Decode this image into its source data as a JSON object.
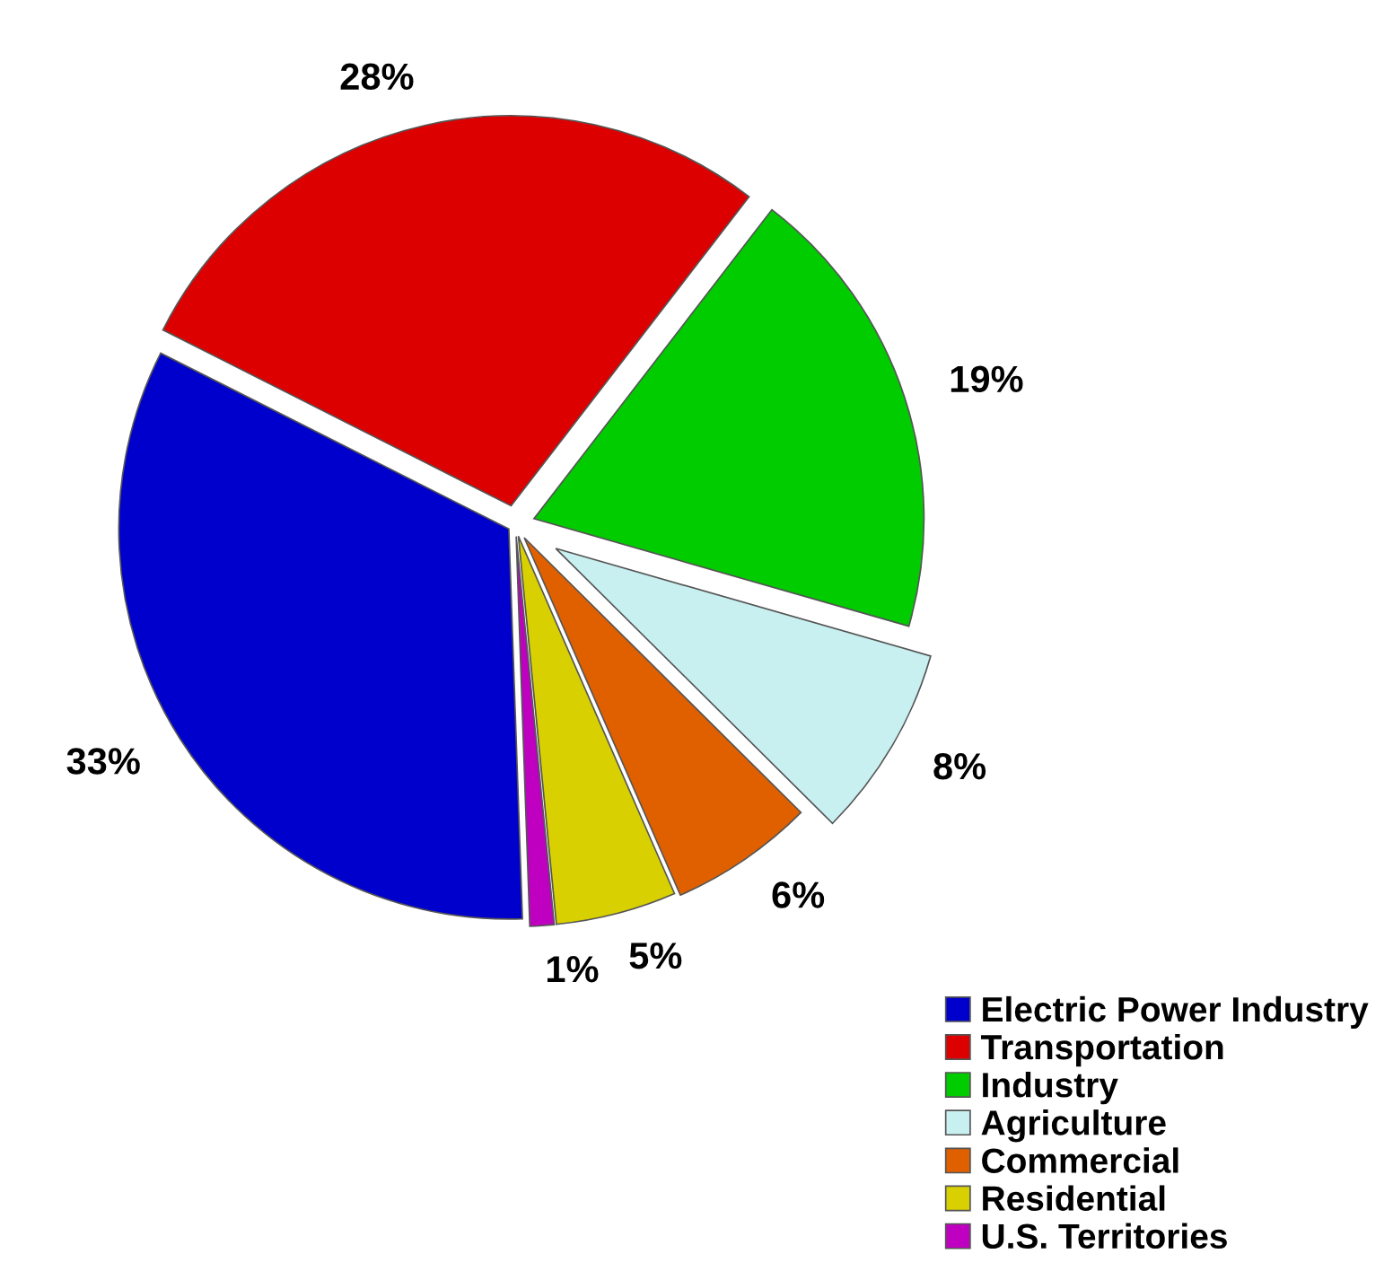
{
  "chart_data": {
    "type": "pie",
    "categories": [
      "Electric Power Industry",
      "Transportation",
      "Industry",
      "Agriculture",
      "Commercial",
      "Residential",
      "U.S. Territories"
    ],
    "values": [
      33,
      28,
      19,
      8,
      6,
      5,
      1
    ],
    "colors": [
      "#0000cc",
      "#dd0000",
      "#00cc00",
      "#c8f0f0",
      "#e06000",
      "#d8d000",
      "#c000c0"
    ],
    "value_labels": [
      "33%",
      "28%",
      "19%",
      "8%",
      "6%",
      "5%",
      "1%"
    ],
    "legend": "bottom right"
  }
}
